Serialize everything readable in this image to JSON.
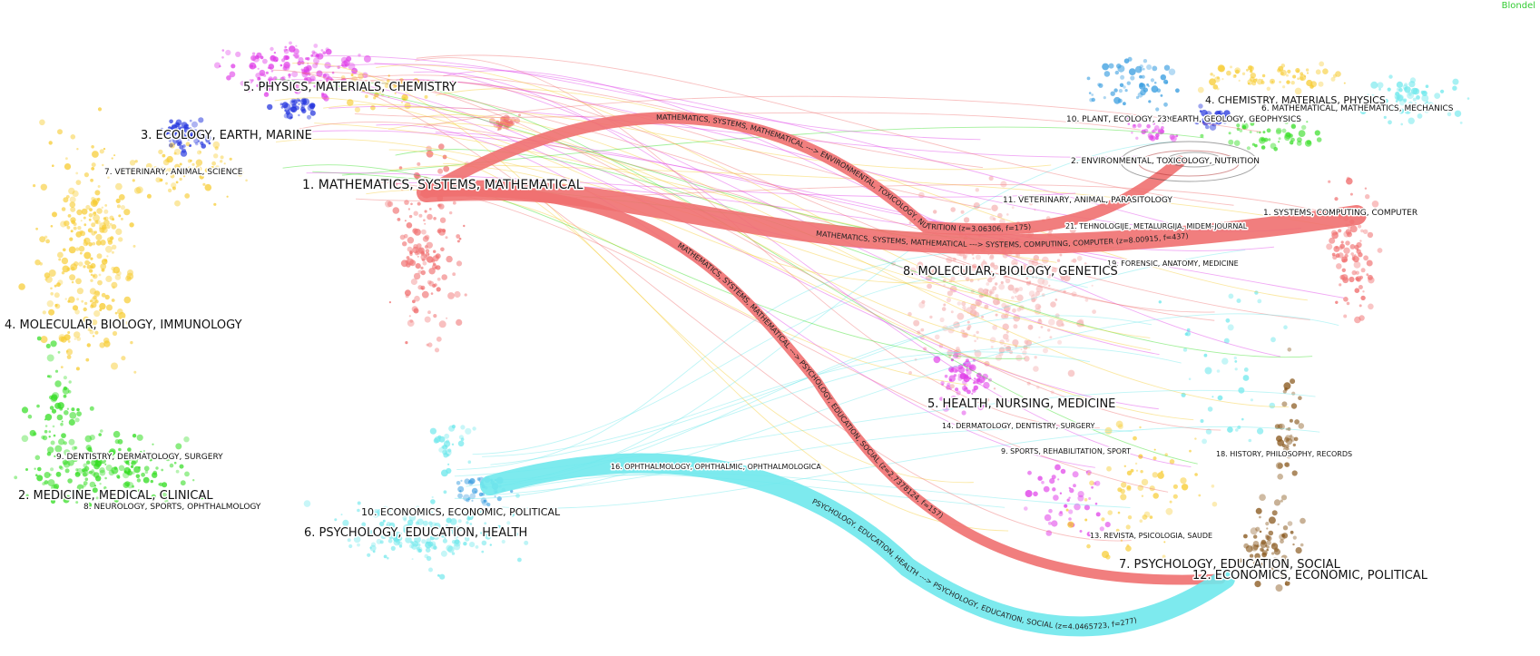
{
  "corner_label": "Blondel",
  "colors": {
    "red": "#f07070",
    "cyan": "#6fe8ec",
    "magenta": "#e040e8",
    "blue": "#2233dd",
    "yellow": "#f7cc33",
    "green": "#33dd22",
    "lightblue": "#3a9ee0",
    "pink": "#f5b5b5",
    "brown": "#8a5a20"
  },
  "citing_labels": [
    "5. PHYSICS, MATERIALS, CHEMISTRY",
    "3. ECOLOGY, EARTH, MARINE",
    "7. VETERINARY, ANIMAL, SCIENCE",
    "1. MATHEMATICS, SYSTEMS, MATHEMATICAL",
    "4. MOLECULAR, BIOLOGY, IMMUNOLOGY",
    "9. DENTISTRY, DERMATOLOGY, SURGERY",
    "2. MEDICINE, MEDICAL, CLINICAL",
    "8. NEUROLOGY, SPORTS, OPHTHALMOLOGY",
    "10. ECONOMICS, ECONOMIC, POLITICAL",
    "6. PSYCHOLOGY, EDUCATION, HEALTH"
  ],
  "cited_labels": [
    "4. CHEMISTRY, MATERIALS, PHYSICS",
    "10. PLANT, ECOLOGY, ZOOLOGY",
    "3. EARTH, GEOLOGY, GEOPHYSICS",
    "6. MATHEMATICAL, MATHEMATICS, MECHANICS",
    "2. ENVIRONMENTAL, TOXICOLOGY, NUTRITION",
    "11. VETERINARY, ANIMAL, PARASITOLOGY",
    "1. SYSTEMS, COMPUTING, COMPUTER",
    "21. TEHNOLOGIJE, METALURGIJA, MIDEM-JOURNAL",
    "19. FORENSIC, ANATOMY, MEDICINE",
    "8. MOLECULAR, BIOLOGY, GENETICS",
    "5. HEALTH, NURSING, MEDICINE",
    "14. DERMATOLOGY, DENTISTRY, SURGERY",
    "9. SPORTS, REHABILITATION, SPORT",
    "18. HISTORY, PHILOSOPHY, RECORDS",
    "16. OPHTHALMOLOGY, OPHTHALMIC, OPHTHALMOLOGICA",
    "13. REVISTA, PSICOLOGIA, SAUDE",
    "7. PSYCHOLOGY, EDUCATION, SOCIAL",
    "12. ECONOMICS, ECONOMIC, POLITICAL"
  ],
  "main_arcs": [
    {
      "text": "MATHEMATICS, SYSTEMS, MATHEMATICAL ---> SYSTEMS, COMPUTING, COMPUTER (z=8.00915, f=437)",
      "color": "red"
    },
    {
      "text": "MATHEMATICS, SYSTEMS, MATHEMATICAL ---> ENVIRONMENTAL, TOXICOLOGY, NUTRITION (z=3.06306, f=175)",
      "color": "red"
    },
    {
      "text": "MATHEMATICS, SYSTEMS, MATHEMATICAL ---> PSYCHOLOGY, EDUCATION, SOCIAL (z=2.7378124, f=157)",
      "color": "red"
    },
    {
      "text": "PSYCHOLOGY, EDUCATION, HEALTH ---> PSYCHOLOGY, EDUCATION, SOCIAL (z=4.0465723, f=277)",
      "color": "cyan"
    }
  ]
}
